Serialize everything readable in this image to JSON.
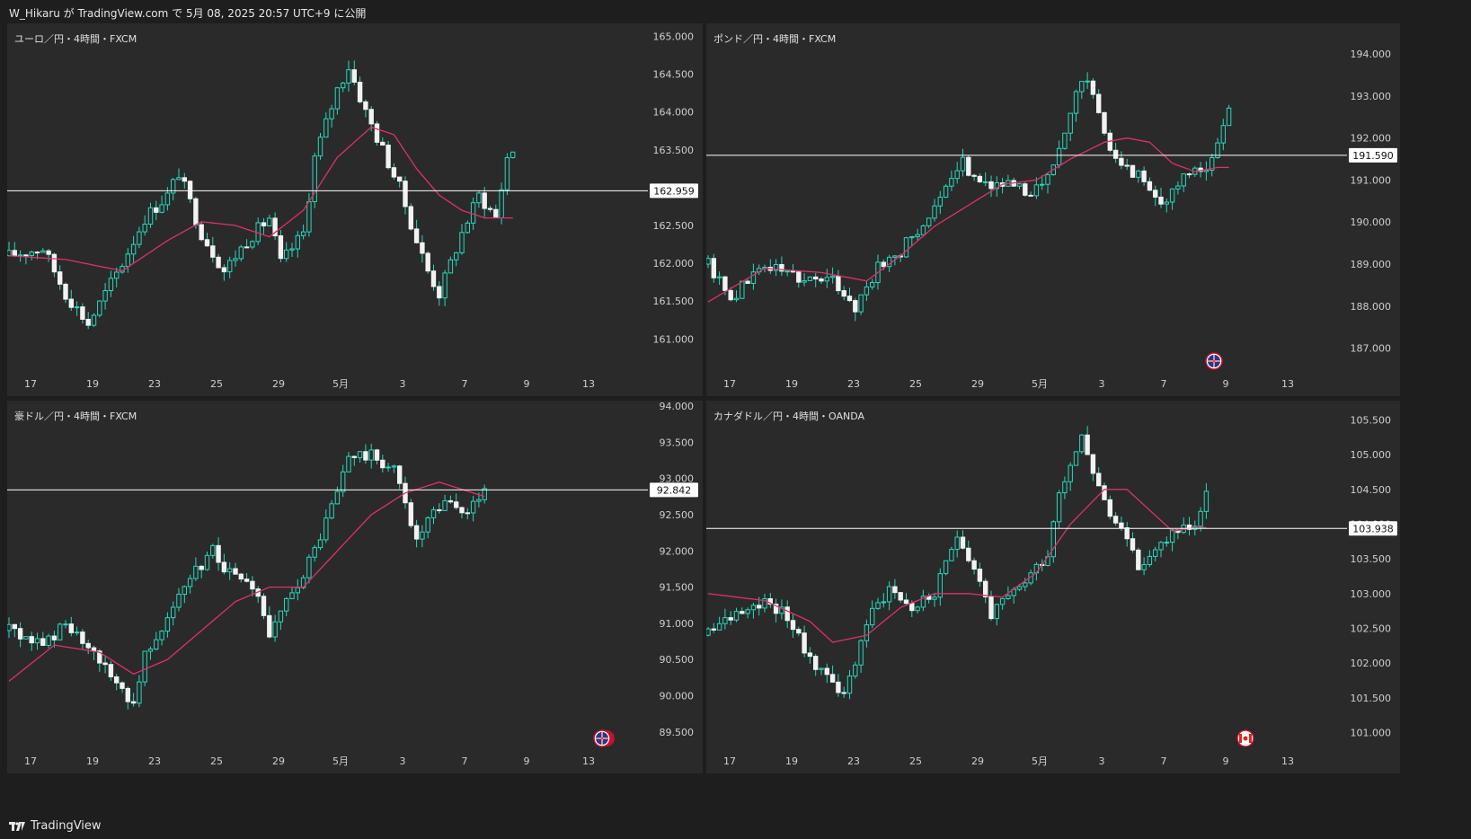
{
  "header": {
    "text": "W_Hikaru が TradingView.com で 5月 08, 2025 20:57 UTC+9 に公開"
  },
  "footer": {
    "logo_text": "TradingView"
  },
  "colors": {
    "candle": "#26d9bf",
    "ma": "#e0306a",
    "price_line": "#ffffff",
    "panel_bg": "#2a2a2a"
  },
  "chart_data": [
    {
      "type": "candlestick",
      "title": "ユーロ／円・4時間・FXCM",
      "current_price": 162.959,
      "current_price_label": "162.959",
      "ylim": [
        160.6,
        165.1
      ],
      "yticks": [
        "165.000",
        "164.500",
        "164.000",
        "163.500",
        "163.000",
        "162.500",
        "162.000",
        "161.500",
        "161.000"
      ],
      "xticks": [
        "17",
        "19",
        "23",
        "25",
        "29",
        "5月",
        "3",
        "7",
        "9",
        "13"
      ],
      "badge": "",
      "path": [
        [
          0,
          162.1
        ],
        [
          6,
          162.2
        ],
        [
          10,
          161.6
        ],
        [
          14,
          161.2
        ],
        [
          20,
          162.0
        ],
        [
          24,
          162.6
        ],
        [
          28,
          162.9
        ],
        [
          30,
          163.2
        ],
        [
          34,
          162.4
        ],
        [
          38,
          161.9
        ],
        [
          42,
          162.3
        ],
        [
          46,
          162.6
        ],
        [
          48,
          162.0
        ],
        [
          52,
          162.4
        ],
        [
          54,
          163.4
        ],
        [
          58,
          164.3
        ],
        [
          60,
          164.6
        ],
        [
          63,
          164.0
        ],
        [
          66,
          163.5
        ],
        [
          69,
          163.0
        ],
        [
          72,
          162.3
        ],
        [
          74,
          161.9
        ],
        [
          76,
          161.6
        ],
        [
          80,
          162.4
        ],
        [
          83,
          162.9
        ],
        [
          86,
          162.6
        ],
        [
          88,
          163.4
        ],
        [
          89,
          163.5
        ]
      ],
      "ma": [
        [
          0,
          162.1
        ],
        [
          10,
          162.05
        ],
        [
          20,
          161.9
        ],
        [
          28,
          162.3
        ],
        [
          34,
          162.55
        ],
        [
          40,
          162.5
        ],
        [
          46,
          162.35
        ],
        [
          52,
          162.7
        ],
        [
          58,
          163.4
        ],
        [
          64,
          163.8
        ],
        [
          68,
          163.7
        ],
        [
          72,
          163.25
        ],
        [
          76,
          162.9
        ],
        [
          80,
          162.7
        ],
        [
          84,
          162.6
        ],
        [
          88,
          162.6
        ]
      ]
    },
    {
      "type": "candlestick",
      "title": "ポンド／円・4時間・FXCM",
      "current_price": 191.59,
      "current_price_label": "191.590",
      "ylim": [
        186.5,
        194.6
      ],
      "yticks": [
        "194.000",
        "193.000",
        "192.000",
        "191.000",
        "190.000",
        "189.000",
        "188.000",
        "187.000"
      ],
      "xticks": [
        "17",
        "19",
        "23",
        "25",
        "29",
        "5月",
        "3",
        "7",
        "9",
        "13"
      ],
      "badge": "uk-flag",
      "path": [
        [
          0,
          189.0
        ],
        [
          4,
          188.2
        ],
        [
          10,
          189.0
        ],
        [
          16,
          188.7
        ],
        [
          22,
          188.6
        ],
        [
          26,
          188.0
        ],
        [
          30,
          188.9
        ],
        [
          34,
          189.3
        ],
        [
          38,
          190.0
        ],
        [
          42,
          190.7
        ],
        [
          45,
          191.4
        ],
        [
          48,
          191.0
        ],
        [
          52,
          190.9
        ],
        [
          56,
          190.7
        ],
        [
          60,
          191.0
        ],
        [
          64,
          192.5
        ],
        [
          66,
          193.5
        ],
        [
          68,
          193.0
        ],
        [
          70,
          192.0
        ],
        [
          74,
          191.3
        ],
        [
          78,
          190.9
        ],
        [
          80,
          190.4
        ],
        [
          82,
          190.7
        ],
        [
          86,
          191.3
        ],
        [
          88,
          191.2
        ],
        [
          90,
          191.8
        ],
        [
          92,
          192.8
        ]
      ],
      "ma": [
        [
          0,
          188.1
        ],
        [
          10,
          188.9
        ],
        [
          20,
          188.8
        ],
        [
          28,
          188.6
        ],
        [
          34,
          189.2
        ],
        [
          40,
          189.9
        ],
        [
          46,
          190.4
        ],
        [
          52,
          190.9
        ],
        [
          58,
          191.0
        ],
        [
          64,
          191.5
        ],
        [
          70,
          191.9
        ],
        [
          74,
          192.0
        ],
        [
          78,
          191.9
        ],
        [
          82,
          191.4
        ],
        [
          86,
          191.2
        ],
        [
          90,
          191.3
        ]
      ]
    },
    {
      "type": "candlestick",
      "title": "豪ドル／円・4時間・FXCM",
      "current_price": 92.842,
      "current_price_label": "92.842",
      "ylim": [
        89.3,
        94.0
      ],
      "yticks": [
        "94.000",
        "93.500",
        "93.000",
        "92.500",
        "92.000",
        "91.500",
        "91.000",
        "90.500",
        "90.000",
        "89.500"
      ],
      "xticks": [
        "17",
        "19",
        "23",
        "25",
        "29",
        "5月",
        "3",
        "7",
        "9",
        "13"
      ],
      "badge": "au-flag",
      "path": [
        [
          0,
          90.9
        ],
        [
          6,
          90.7
        ],
        [
          10,
          91.0
        ],
        [
          14,
          90.6
        ],
        [
          18,
          90.3
        ],
        [
          22,
          89.9
        ],
        [
          24,
          90.6
        ],
        [
          28,
          91.1
        ],
        [
          32,
          91.6
        ],
        [
          36,
          92.0
        ],
        [
          40,
          91.6
        ],
        [
          44,
          91.4
        ],
        [
          46,
          90.8
        ],
        [
          50,
          91.4
        ],
        [
          54,
          92.0
        ],
        [
          58,
          92.8
        ],
        [
          60,
          93.3
        ],
        [
          64,
          93.3
        ],
        [
          68,
          93.1
        ],
        [
          70,
          92.7
        ],
        [
          72,
          92.1
        ],
        [
          74,
          92.4
        ],
        [
          78,
          92.7
        ],
        [
          80,
          92.5
        ],
        [
          84,
          92.8
        ]
      ],
      "ma": [
        [
          0,
          90.2
        ],
        [
          8,
          90.7
        ],
        [
          16,
          90.6
        ],
        [
          22,
          90.3
        ],
        [
          28,
          90.5
        ],
        [
          34,
          90.9
        ],
        [
          40,
          91.3
        ],
        [
          46,
          91.5
        ],
        [
          52,
          91.5
        ],
        [
          58,
          92.0
        ],
        [
          64,
          92.5
        ],
        [
          70,
          92.8
        ],
        [
          76,
          92.95
        ],
        [
          80,
          92.85
        ],
        [
          84,
          92.75
        ]
      ]
    },
    {
      "type": "candlestick",
      "title": "カナダドル／円・4時間・OANDA",
      "current_price": 103.938,
      "current_price_label": "103.938",
      "ylim": [
        100.8,
        105.7
      ],
      "yticks": [
        "105.500",
        "105.000",
        "104.500",
        "104.000",
        "103.500",
        "103.000",
        "102.500",
        "102.000",
        "101.500",
        "101.000"
      ],
      "xticks": [
        "17",
        "19",
        "23",
        "25",
        "29",
        "5月",
        "3",
        "7",
        "9",
        "13"
      ],
      "badge": "ca-flag",
      "path": [
        [
          0,
          102.4
        ],
        [
          6,
          102.8
        ],
        [
          10,
          102.9
        ],
        [
          14,
          102.7
        ],
        [
          18,
          102.0
        ],
        [
          22,
          101.8
        ],
        [
          24,
          101.5
        ],
        [
          28,
          102.6
        ],
        [
          32,
          103.1
        ],
        [
          36,
          102.8
        ],
        [
          40,
          103.0
        ],
        [
          42,
          103.4
        ],
        [
          44,
          103.9
        ],
        [
          48,
          103.2
        ],
        [
          50,
          102.7
        ],
        [
          54,
          103.0
        ],
        [
          58,
          103.4
        ],
        [
          60,
          103.6
        ],
        [
          62,
          104.5
        ],
        [
          66,
          105.3
        ],
        [
          68,
          104.8
        ],
        [
          70,
          104.3
        ],
        [
          72,
          104.0
        ],
        [
          74,
          103.7
        ],
        [
          76,
          103.4
        ],
        [
          78,
          103.5
        ],
        [
          82,
          103.9
        ],
        [
          86,
          104.0
        ],
        [
          88,
          104.4
        ]
      ],
      "ma": [
        [
          0,
          103.0
        ],
        [
          10,
          102.9
        ],
        [
          18,
          102.6
        ],
        [
          22,
          102.3
        ],
        [
          28,
          102.4
        ],
        [
          34,
          102.8
        ],
        [
          40,
          103.0
        ],
        [
          46,
          103.0
        ],
        [
          52,
          102.95
        ],
        [
          58,
          103.3
        ],
        [
          64,
          104.0
        ],
        [
          70,
          104.5
        ],
        [
          74,
          104.5
        ],
        [
          78,
          104.2
        ],
        [
          82,
          103.9
        ],
        [
          86,
          103.95
        ]
      ]
    }
  ]
}
